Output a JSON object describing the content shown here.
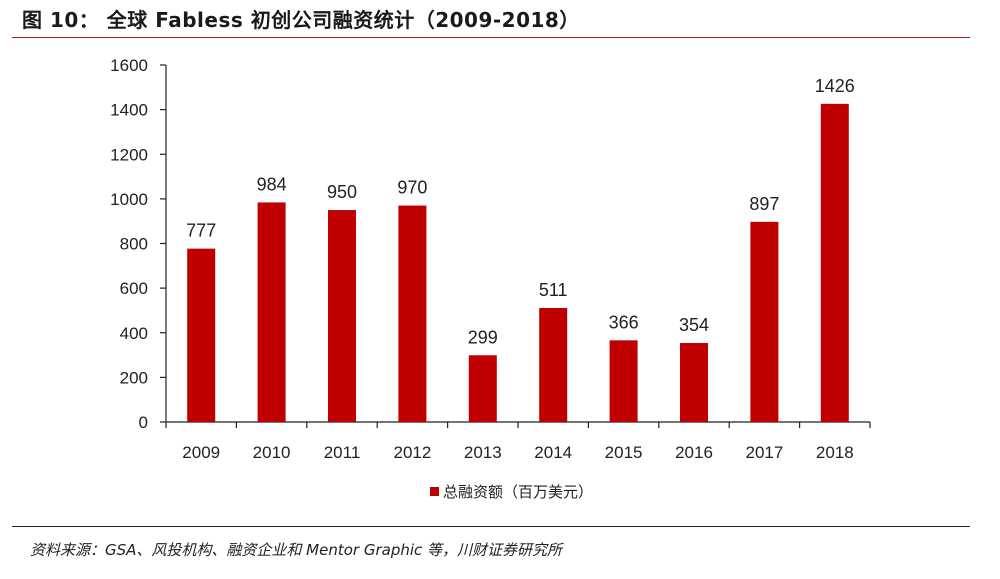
{
  "title": "图 10：  全球 Fabless 初创公司融资统计（2009-2018）",
  "source": "资料来源：GSA、风投机构、融资企业和 Mentor Graphic 等，川财证券研究所",
  "colors": {
    "bar": "#c00000",
    "title_rule": "#a61c1c",
    "axis": "#222222"
  },
  "chart_data": {
    "type": "bar",
    "title": "",
    "xlabel": "",
    "ylabel": "",
    "categories": [
      "2009",
      "2010",
      "2011",
      "2012",
      "2013",
      "2014",
      "2015",
      "2016",
      "2017",
      "2018"
    ],
    "series": [
      {
        "name": "总融资额（百万美元）",
        "values": [
          777,
          984,
          950,
          970,
          299,
          511,
          366,
          354,
          897,
          1426
        ]
      }
    ],
    "ylim": [
      0,
      1600
    ],
    "yticks": [
      0,
      200,
      400,
      600,
      800,
      1000,
      1200,
      1400,
      1600
    ],
    "grid": false,
    "legend": "bottom",
    "data_labels": true
  }
}
